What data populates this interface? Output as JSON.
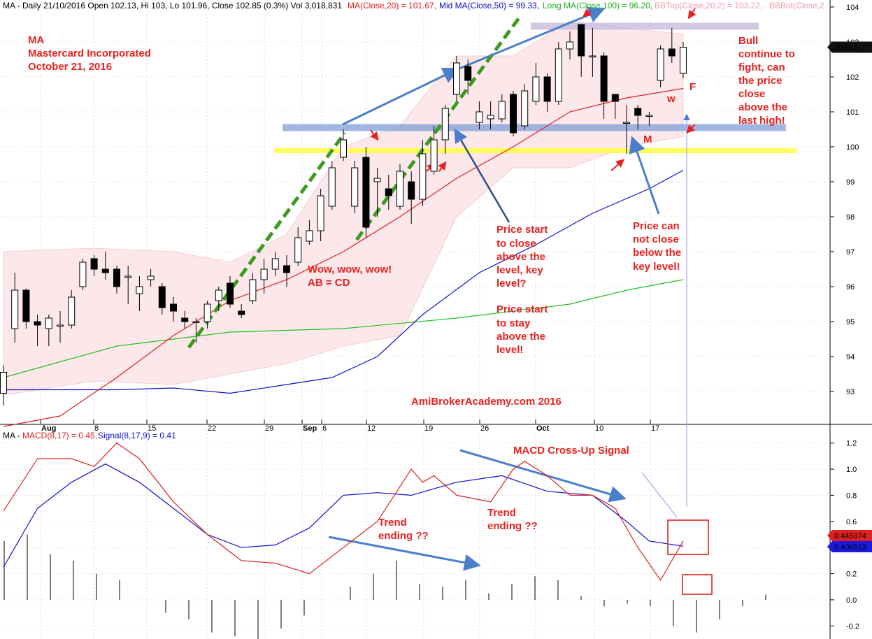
{
  "header": {
    "price": "MA - Daily 21/10/2016 Open 102.13, Hi 103, Lo 101.96, Close 102.85 (0.3%) Vol 3,018,831",
    "ma20": "MA(Close,20) = 101.67,",
    "ma50": "Mid MA(Close,50) = 99.33,",
    "ma100": "Long MA(Close,100) = 96.20,",
    "bbtop": "BBTop(Close,20,2) = 103.22,",
    "bbbot": "BBBot(Close,2"
  },
  "macd_header": {
    "prefix": "MA - ",
    "macd": "MACD(8,17) = 0.45,",
    "signal": "Signal(8,17,9) = 0.41"
  },
  "title_block": [
    "MA",
    "Mastercard Incorporated",
    "October 21, 2016"
  ],
  "watermark": "AmiBrokerAcademy.com   2016",
  "annotations": {
    "abcd": [
      "Wow, wow, wow!",
      "AB = CD"
    ],
    "close_above": [
      "Price start",
      "to close",
      "above the",
      "level, key",
      "level?"
    ],
    "stay_above": [
      "Price start",
      "to stay",
      "above the",
      "level!"
    ],
    "cannot_close": [
      "Price can",
      "not close",
      "below the",
      "key level!"
    ],
    "bull": [
      "Bull",
      "continue to",
      "fight, can",
      "the price",
      "close",
      "above the",
      "last high!"
    ],
    "w": "w",
    "f": "F",
    "m": "M",
    "macd_cross": "MACD Cross-Up Signal",
    "trend1": [
      "Trend",
      "ending ??"
    ],
    "trend2": [
      "Trend",
      "ending ??"
    ]
  },
  "colors": {
    "bull_body": "#ffffff",
    "bear_body": "#000000",
    "ma20": "#e02020",
    "ma50": "#1010d0",
    "ma100": "#20c020",
    "bb_fill": "#fce8ea",
    "annotation": "#e8211f",
    "arrow": "#4a7fcc",
    "trend": "#3c9a1e",
    "key_level_blue": "#7f9fd8",
    "key_level_yellow": "#ffff40",
    "resistance": "#c8bcdc"
  },
  "chart_data": {
    "type": "candlestick",
    "x_ticks": [
      "Aug",
      "8",
      "15",
      "22",
      "29",
      "Sep",
      "6",
      "12",
      "19",
      "26",
      "Oct",
      "10",
      "17"
    ],
    "y_ticks": [
      93,
      94,
      95,
      96,
      97,
      98,
      99,
      100,
      101,
      102,
      103,
      104
    ],
    "ylim": [
      92.2,
      104.2
    ],
    "last_price_label": "102.85",
    "key_levels": {
      "blue_band": [
        100.45,
        100.65
      ],
      "yellow_band": [
        99.82,
        99.96
      ],
      "resistance_band": [
        103.35,
        103.55
      ]
    },
    "candles": [
      [
        92.95,
        93.55,
        93.75,
        92.6
      ],
      [
        94.8,
        95.9,
        96.4,
        94.4
      ],
      [
        95.9,
        95.0,
        95.95,
        94.8
      ],
      [
        95.0,
        94.9,
        95.2,
        94.3
      ],
      [
        94.8,
        95.1,
        95.2,
        94.3
      ],
      [
        94.9,
        94.9,
        95.3,
        94.4
      ],
      [
        94.9,
        95.7,
        95.9,
        94.8
      ],
      [
        96.0,
        96.7,
        96.8,
        95.9
      ],
      [
        96.8,
        96.5,
        96.9,
        96.3
      ],
      [
        96.5,
        96.4,
        97.0,
        96.2
      ],
      [
        96.5,
        96.0,
        96.6,
        95.8
      ],
      [
        96.3,
        96.3,
        96.6,
        95.5
      ],
      [
        95.8,
        96.0,
        96.3,
        95.3
      ],
      [
        96.2,
        96.3,
        96.5,
        96.0
      ],
      [
        96.0,
        95.4,
        96.1,
        95.2
      ],
      [
        95.5,
        95.3,
        95.7,
        95.0
      ],
      [
        95.1,
        95.0,
        95.3,
        94.8
      ],
      [
        95.0,
        95.0,
        95.1,
        94.4
      ],
      [
        95.0,
        95.5,
        95.6,
        94.8
      ],
      [
        95.6,
        95.9,
        96.0,
        95.3
      ],
      [
        96.1,
        95.5,
        96.3,
        95.4
      ],
      [
        95.3,
        95.2,
        95.5,
        95.1
      ],
      [
        95.6,
        96.2,
        96.4,
        95.5
      ],
      [
        96.2,
        96.5,
        96.8,
        95.8
      ],
      [
        96.5,
        96.8,
        97.0,
        96.3
      ],
      [
        96.6,
        96.4,
        96.9,
        96.0
      ],
      [
        96.7,
        97.4,
        97.7,
        96.6
      ],
      [
        97.3,
        97.6,
        97.9,
        97.2
      ],
      [
        97.6,
        98.6,
        98.8,
        97.3
      ],
      [
        98.3,
        99.4,
        99.6,
        98.2
      ],
      [
        99.7,
        100.2,
        100.5,
        99.6
      ],
      [
        98.3,
        99.4,
        99.6,
        98.1
      ],
      [
        99.7,
        97.7,
        100.0,
        97.4
      ],
      [
        99.0,
        99.1,
        99.4,
        98.0
      ],
      [
        98.8,
        98.6,
        99.2,
        98.2
      ],
      [
        98.3,
        99.3,
        99.5,
        98.2
      ],
      [
        99.0,
        98.5,
        99.3,
        97.8
      ],
      [
        98.5,
        99.8,
        100.2,
        98.3
      ],
      [
        99.3,
        100.2,
        100.6,
        99.2
      ],
      [
        100.2,
        101.1,
        101.2,
        99.8
      ],
      [
        101.5,
        102.4,
        102.6,
        101.3
      ],
      [
        102.3,
        101.9,
        102.5,
        101.5
      ],
      [
        100.7,
        101.0,
        101.3,
        100.5
      ],
      [
        100.8,
        100.9,
        101.3,
        100.5
      ],
      [
        100.8,
        101.3,
        101.5,
        100.7
      ],
      [
        101.5,
        100.4,
        101.6,
        100.3
      ],
      [
        100.6,
        101.6,
        101.8,
        100.5
      ],
      [
        101.3,
        102.0,
        102.4,
        101.2
      ],
      [
        102.0,
        101.3,
        102.1,
        101.0
      ],
      [
        101.3,
        102.8,
        103.0,
        101.2
      ],
      [
        102.8,
        103.0,
        103.3,
        102.5
      ],
      [
        103.5,
        102.6,
        103.5,
        102.0
      ],
      [
        102.6,
        102.6,
        103.4,
        102.0
      ],
      [
        102.6,
        101.3,
        102.7,
        100.8
      ],
      [
        101.5,
        101.3,
        101.5,
        100.8
      ],
      [
        100.7,
        100.7,
        101.2,
        99.8
      ],
      [
        101.1,
        100.9,
        101.2,
        100.5
      ],
      [
        100.9,
        100.9,
        101.0,
        100.6
      ],
      [
        101.9,
        102.8,
        102.9,
        101.7
      ],
      [
        102.8,
        102.6,
        103.4,
        102.4
      ],
      [
        102.1,
        102.85,
        103.0,
        101.96
      ]
    ],
    "ma20_points": [
      [
        0,
        92.0
      ],
      [
        5,
        92.3
      ],
      [
        10,
        93.4
      ],
      [
        15,
        94.6
      ],
      [
        20,
        95.6
      ],
      [
        25,
        96.2
      ],
      [
        30,
        97.0
      ],
      [
        35,
        98.0
      ],
      [
        40,
        99.1
      ],
      [
        45,
        100.0
      ],
      [
        50,
        101.0
      ],
      [
        55,
        101.4
      ],
      [
        60,
        101.67
      ]
    ],
    "ma50_points": [
      [
        0,
        93.05
      ],
      [
        10,
        93.05
      ],
      [
        15,
        93.1
      ],
      [
        20,
        92.95
      ],
      [
        25,
        93.2
      ],
      [
        29,
        93.4
      ],
      [
        33,
        94.0
      ],
      [
        37,
        95.2
      ],
      [
        42,
        96.4
      ],
      [
        47,
        97.2
      ],
      [
        52,
        98.1
      ],
      [
        57,
        98.8
      ],
      [
        60,
        99.33
      ]
    ],
    "ma100_points": [
      [
        0,
        93.4
      ],
      [
        10,
        94.3
      ],
      [
        20,
        94.7
      ],
      [
        30,
        94.8
      ],
      [
        40,
        95.1
      ],
      [
        50,
        95.5
      ],
      [
        55,
        95.9
      ],
      [
        60,
        96.2
      ]
    ],
    "bb_top": [
      [
        0,
        97.0
      ],
      [
        8,
        97.1
      ],
      [
        15,
        97.0
      ],
      [
        20,
        96.7
      ],
      [
        25,
        97.5
      ],
      [
        30,
        100.0
      ],
      [
        35,
        100.6
      ],
      [
        40,
        102.6
      ],
      [
        45,
        102.6
      ],
      [
        50,
        103.6
      ],
      [
        55,
        103.4
      ],
      [
        60,
        103.22
      ]
    ],
    "bb_bot": [
      [
        0,
        92.9
      ],
      [
        8,
        93.3
      ],
      [
        15,
        93.2
      ],
      [
        20,
        93.5
      ],
      [
        25,
        93.8
      ],
      [
        30,
        94.3
      ],
      [
        35,
        94.6
      ],
      [
        40,
        98.0
      ],
      [
        45,
        99.4
      ],
      [
        50,
        99.4
      ],
      [
        55,
        100.0
      ],
      [
        60,
        100.3
      ]
    ],
    "macd": {
      "y_ticks": [
        -0.2,
        0.0,
        0.2,
        0.4,
        0.6,
        0.8,
        1.0,
        1.2
      ],
      "ylim": [
        -0.3,
        1.3
      ],
      "macd_label": "0.445074",
      "signal_label": "0.406513",
      "macd_line": [
        [
          0,
          0.68
        ],
        [
          3,
          1.08
        ],
        [
          6,
          1.08
        ],
        [
          8,
          1.02
        ],
        [
          10,
          1.2
        ],
        [
          12,
          1.08
        ],
        [
          15,
          0.75
        ],
        [
          18,
          0.5
        ],
        [
          21,
          0.3
        ],
        [
          24,
          0.28
        ],
        [
          27,
          0.2
        ],
        [
          30,
          0.4
        ],
        [
          33,
          0.6
        ],
        [
          36,
          1.0
        ],
        [
          37,
          0.9
        ],
        [
          38,
          0.95
        ],
        [
          40,
          0.8
        ],
        [
          43,
          0.75
        ],
        [
          45,
          1.0
        ],
        [
          46,
          1.06
        ],
        [
          48,
          0.95
        ],
        [
          50,
          0.8
        ],
        [
          52,
          0.8
        ],
        [
          54,
          0.7
        ],
        [
          56,
          0.4
        ],
        [
          58,
          0.15
        ],
        [
          60,
          0.45
        ]
      ],
      "signal_line": [
        [
          0,
          0.25
        ],
        [
          3,
          0.7
        ],
        [
          6,
          0.9
        ],
        [
          9,
          1.04
        ],
        [
          12,
          0.9
        ],
        [
          15,
          0.7
        ],
        [
          18,
          0.5
        ],
        [
          21,
          0.4
        ],
        [
          24,
          0.42
        ],
        [
          27,
          0.55
        ],
        [
          30,
          0.8
        ],
        [
          33,
          0.82
        ],
        [
          36,
          0.8
        ],
        [
          40,
          0.9
        ],
        [
          44,
          0.95
        ],
        [
          48,
          0.83
        ],
        [
          52,
          0.8
        ],
        [
          55,
          0.6
        ],
        [
          57,
          0.45
        ],
        [
          60,
          0.41
        ]
      ],
      "histogram": [
        0.45,
        0.5,
        0.35,
        0.3,
        0.2,
        0.15,
        0.0,
        -0.1,
        -0.15,
        -0.25,
        -0.28,
        -0.3,
        -0.22,
        -0.12,
        0.0,
        0.1,
        0.2,
        0.3,
        0.12,
        0.1,
        0.15,
        0.05,
        0.12,
        0.18,
        0.15,
        0.03,
        -0.05,
        -0.03,
        -0.05,
        -0.2,
        -0.25,
        -0.15,
        -0.05,
        0.04
      ]
    }
  }
}
